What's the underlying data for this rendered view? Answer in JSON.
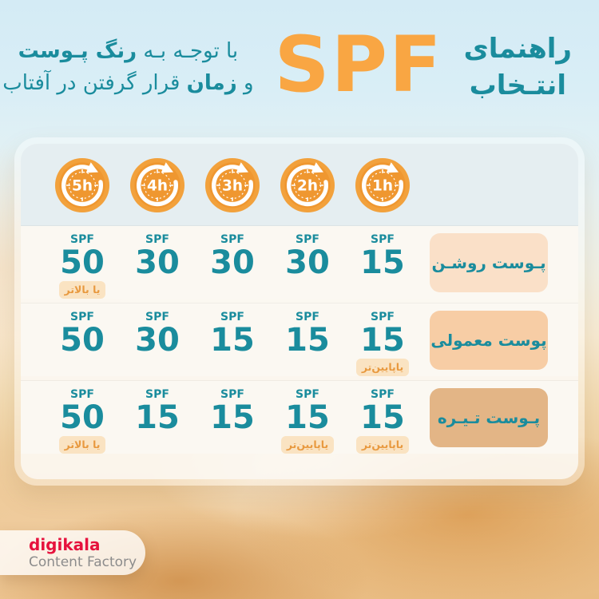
{
  "header": {
    "title_line1": "راهنمای",
    "title_line2": "انتـخاب",
    "spf_title": "SPF",
    "subtitle": {
      "l1_normal": "با توجـه بـه ",
      "l1_bold": "رنگ پـوست",
      "l2_pre": "و ",
      "l2_bold": "زمان",
      "l2_rest": " قرار گرفتن در آفتاب"
    }
  },
  "table": {
    "spf_label": "SPF",
    "durations": [
      "5h",
      "4h",
      "3h",
      "2h",
      "1h"
    ],
    "rows": [
      {
        "skin_label": "پـوست روشـن",
        "skin_color": "#FAE0C8",
        "cells": [
          {
            "value": "50",
            "badge": "یا بالاتر"
          },
          {
            "value": "30"
          },
          {
            "value": "30"
          },
          {
            "value": "30"
          },
          {
            "value": "15"
          }
        ]
      },
      {
        "skin_label": "پوست معمولی",
        "skin_color": "#F7CDA5",
        "cells": [
          {
            "value": "50"
          },
          {
            "value": "30"
          },
          {
            "value": "15"
          },
          {
            "value": "15"
          },
          {
            "value": "15",
            "badge": "یاپایین‌تر"
          }
        ]
      },
      {
        "skin_label": "پـوست تـیـره",
        "skin_color": "#E3B586",
        "cells": [
          {
            "value": "50",
            "badge": "یا بالاتر"
          },
          {
            "value": "15"
          },
          {
            "value": "15"
          },
          {
            "value": "15",
            "badge": "یاپایین‌تر"
          },
          {
            "value": "15",
            "badge": "یاپایین‌تر"
          }
        ]
      }
    ]
  },
  "footer": {
    "brand": "digikala",
    "tagline": "Content Factory"
  },
  "colors": {
    "teal": "#1A8C9D",
    "spf_orange": "#F9A643",
    "clock_orange": "#EF9730",
    "clock_ring": "#F2A13C",
    "badge_bg": "#FAE3C2",
    "badge_text": "#E8993F"
  }
}
